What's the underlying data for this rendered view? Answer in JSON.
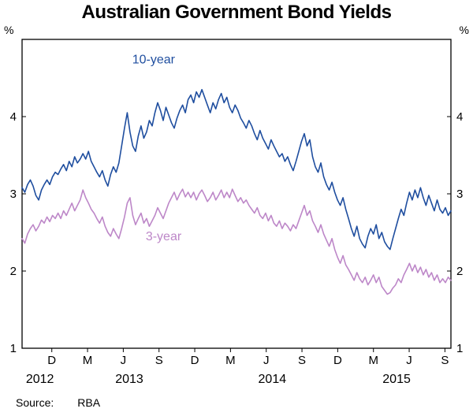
{
  "source": {
    "label": "Source:",
    "value": "RBA"
  },
  "chart_data": {
    "type": "line",
    "title": "Australian Government Bond Yields",
    "y_unit": "%",
    "ylim": [
      1,
      5
    ],
    "yticks": [
      1,
      2,
      3,
      4
    ],
    "grid": false,
    "x_start": 2012.75,
    "x_end": 2015.75,
    "x_ticks": [
      {
        "label": "D",
        "x": 2012.958
      },
      {
        "label": "M",
        "x": 2013.208
      },
      {
        "label": "J",
        "x": 2013.458
      },
      {
        "label": "S",
        "x": 2013.708
      },
      {
        "label": "D",
        "x": 2013.958
      },
      {
        "label": "M",
        "x": 2014.208
      },
      {
        "label": "J",
        "x": 2014.458
      },
      {
        "label": "S",
        "x": 2014.708
      },
      {
        "label": "D",
        "x": 2014.958
      },
      {
        "label": "M",
        "x": 2015.208
      },
      {
        "label": "J",
        "x": 2015.458
      },
      {
        "label": "S",
        "x": 2015.708
      }
    ],
    "year_labels": [
      {
        "label": "2012",
        "x": 2012.875
      },
      {
        "label": "2013",
        "x": 2013.5
      },
      {
        "label": "2014",
        "x": 2014.5
      },
      {
        "label": "2015",
        "x": 2015.37
      }
    ],
    "series": [
      {
        "name": "10-year",
        "color": "#1f4e9f",
        "values": [
          3.08,
          3.02,
          3.12,
          3.18,
          3.1,
          2.98,
          2.92,
          3.05,
          3.12,
          3.18,
          3.12,
          3.22,
          3.28,
          3.25,
          3.32,
          3.38,
          3.3,
          3.42,
          3.35,
          3.48,
          3.4,
          3.45,
          3.52,
          3.45,
          3.55,
          3.42,
          3.35,
          3.28,
          3.22,
          3.3,
          3.18,
          3.1,
          3.25,
          3.35,
          3.28,
          3.4,
          3.62,
          3.85,
          4.05,
          3.8,
          3.62,
          3.55,
          3.75,
          3.88,
          3.72,
          3.8,
          3.95,
          3.88,
          4.05,
          4.18,
          4.08,
          3.95,
          4.12,
          4.02,
          3.92,
          3.85,
          3.98,
          4.08,
          4.15,
          4.05,
          4.22,
          4.28,
          4.18,
          4.32,
          4.25,
          4.35,
          4.25,
          4.15,
          4.05,
          4.18,
          4.1,
          4.22,
          4.3,
          4.18,
          4.25,
          4.12,
          4.05,
          4.15,
          4.08,
          3.98,
          3.92,
          3.85,
          3.95,
          3.88,
          3.78,
          3.7,
          3.82,
          3.72,
          3.65,
          3.58,
          3.7,
          3.62,
          3.55,
          3.48,
          3.52,
          3.42,
          3.48,
          3.38,
          3.3,
          3.42,
          3.55,
          3.68,
          3.78,
          3.62,
          3.7,
          3.48,
          3.35,
          3.28,
          3.4,
          3.22,
          3.12,
          3.05,
          3.15,
          3.02,
          2.92,
          2.85,
          2.95,
          2.8,
          2.68,
          2.55,
          2.45,
          2.58,
          2.42,
          2.35,
          2.3,
          2.45,
          2.55,
          2.48,
          2.6,
          2.42,
          2.5,
          2.38,
          2.32,
          2.28,
          2.42,
          2.55,
          2.68,
          2.8,
          2.72,
          2.88,
          3.02,
          2.92,
          3.05,
          2.95,
          3.08,
          2.95,
          2.85,
          2.98,
          2.88,
          2.78,
          2.92,
          2.8,
          2.75,
          2.82,
          2.72,
          2.78
        ]
      },
      {
        "name": "3-year",
        "color": "#bd87c8",
        "values": [
          2.42,
          2.36,
          2.48,
          2.55,
          2.6,
          2.52,
          2.58,
          2.66,
          2.62,
          2.7,
          2.64,
          2.72,
          2.68,
          2.75,
          2.68,
          2.78,
          2.72,
          2.8,
          2.88,
          2.78,
          2.85,
          2.92,
          3.05,
          2.95,
          2.88,
          2.8,
          2.75,
          2.68,
          2.62,
          2.7,
          2.58,
          2.5,
          2.45,
          2.55,
          2.48,
          2.42,
          2.55,
          2.7,
          2.88,
          2.95,
          2.72,
          2.6,
          2.68,
          2.75,
          2.62,
          2.68,
          2.58,
          2.65,
          2.72,
          2.82,
          2.75,
          2.68,
          2.78,
          2.88,
          2.95,
          3.02,
          2.92,
          3.0,
          3.06,
          2.96,
          3.02,
          2.95,
          3.02,
          2.92,
          3.0,
          3.05,
          2.98,
          2.9,
          2.95,
          3.02,
          2.92,
          2.98,
          3.05,
          2.95,
          3.02,
          2.95,
          3.06,
          2.98,
          2.9,
          2.95,
          2.88,
          2.92,
          2.85,
          2.8,
          2.75,
          2.82,
          2.72,
          2.68,
          2.75,
          2.65,
          2.72,
          2.62,
          2.58,
          2.65,
          2.55,
          2.62,
          2.58,
          2.52,
          2.6,
          2.55,
          2.65,
          2.75,
          2.85,
          2.72,
          2.78,
          2.65,
          2.58,
          2.5,
          2.6,
          2.48,
          2.4,
          2.32,
          2.42,
          2.28,
          2.18,
          2.1,
          2.2,
          2.08,
          2.02,
          1.95,
          1.88,
          1.98,
          1.9,
          1.85,
          1.92,
          1.82,
          1.88,
          1.95,
          1.85,
          1.92,
          1.8,
          1.75,
          1.7,
          1.72,
          1.78,
          1.82,
          1.9,
          1.85,
          1.95,
          2.02,
          2.1,
          2.0,
          2.08,
          1.98,
          2.05,
          1.95,
          2.02,
          1.92,
          1.98,
          1.88,
          1.95,
          1.85,
          1.9,
          1.85,
          1.92,
          1.88
        ]
      }
    ],
    "annotations": [
      {
        "text": "10-year",
        "x": 2013.67,
        "y": 4.69,
        "color": "#1f4e9f"
      },
      {
        "text": "3-year",
        "x": 2013.74,
        "y": 2.4,
        "color": "#bd87c8"
      }
    ]
  }
}
